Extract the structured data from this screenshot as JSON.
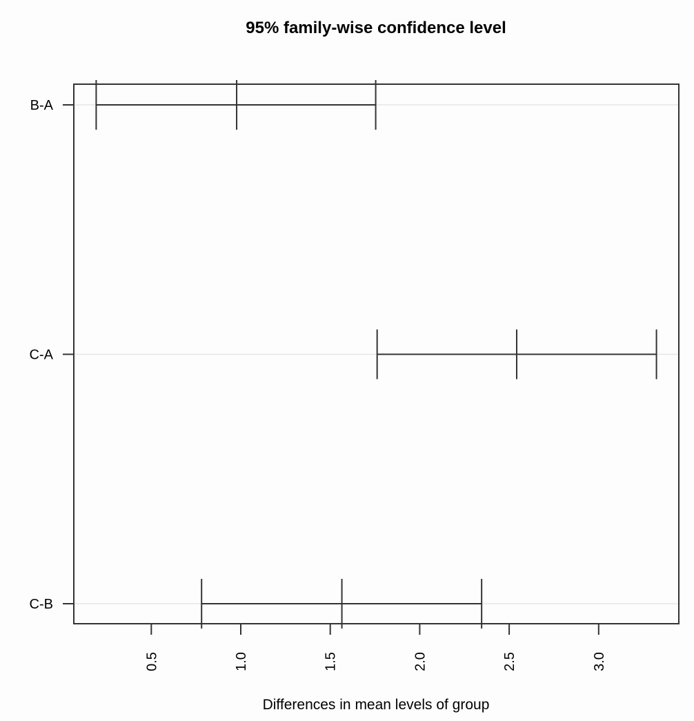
{
  "chart_data": {
    "type": "errorbar",
    "title": "95% family-wise confidence level",
    "xlabel": "Differences in mean levels of group",
    "ylabel": "",
    "categories": [
      "B-A",
      "C-A",
      "C-B"
    ],
    "series": [
      {
        "lwr": 0.192,
        "diff": 0.977,
        "upr": 1.754
      },
      {
        "lwr": 1.762,
        "diff": 2.542,
        "upr": 3.323
      },
      {
        "lwr": 0.781,
        "diff": 1.565,
        "upr": 2.346
      }
    ],
    "xlim": [
      0.067,
      3.448
    ],
    "xticks": [
      "0.5",
      "1.0",
      "1.5",
      "2.0",
      "2.5",
      "3.0"
    ],
    "grid": "horizontal lines at categories",
    "colors": {
      "line": "#333333",
      "grid": "#e6e6e6",
      "background": "#fdfdfd"
    }
  }
}
